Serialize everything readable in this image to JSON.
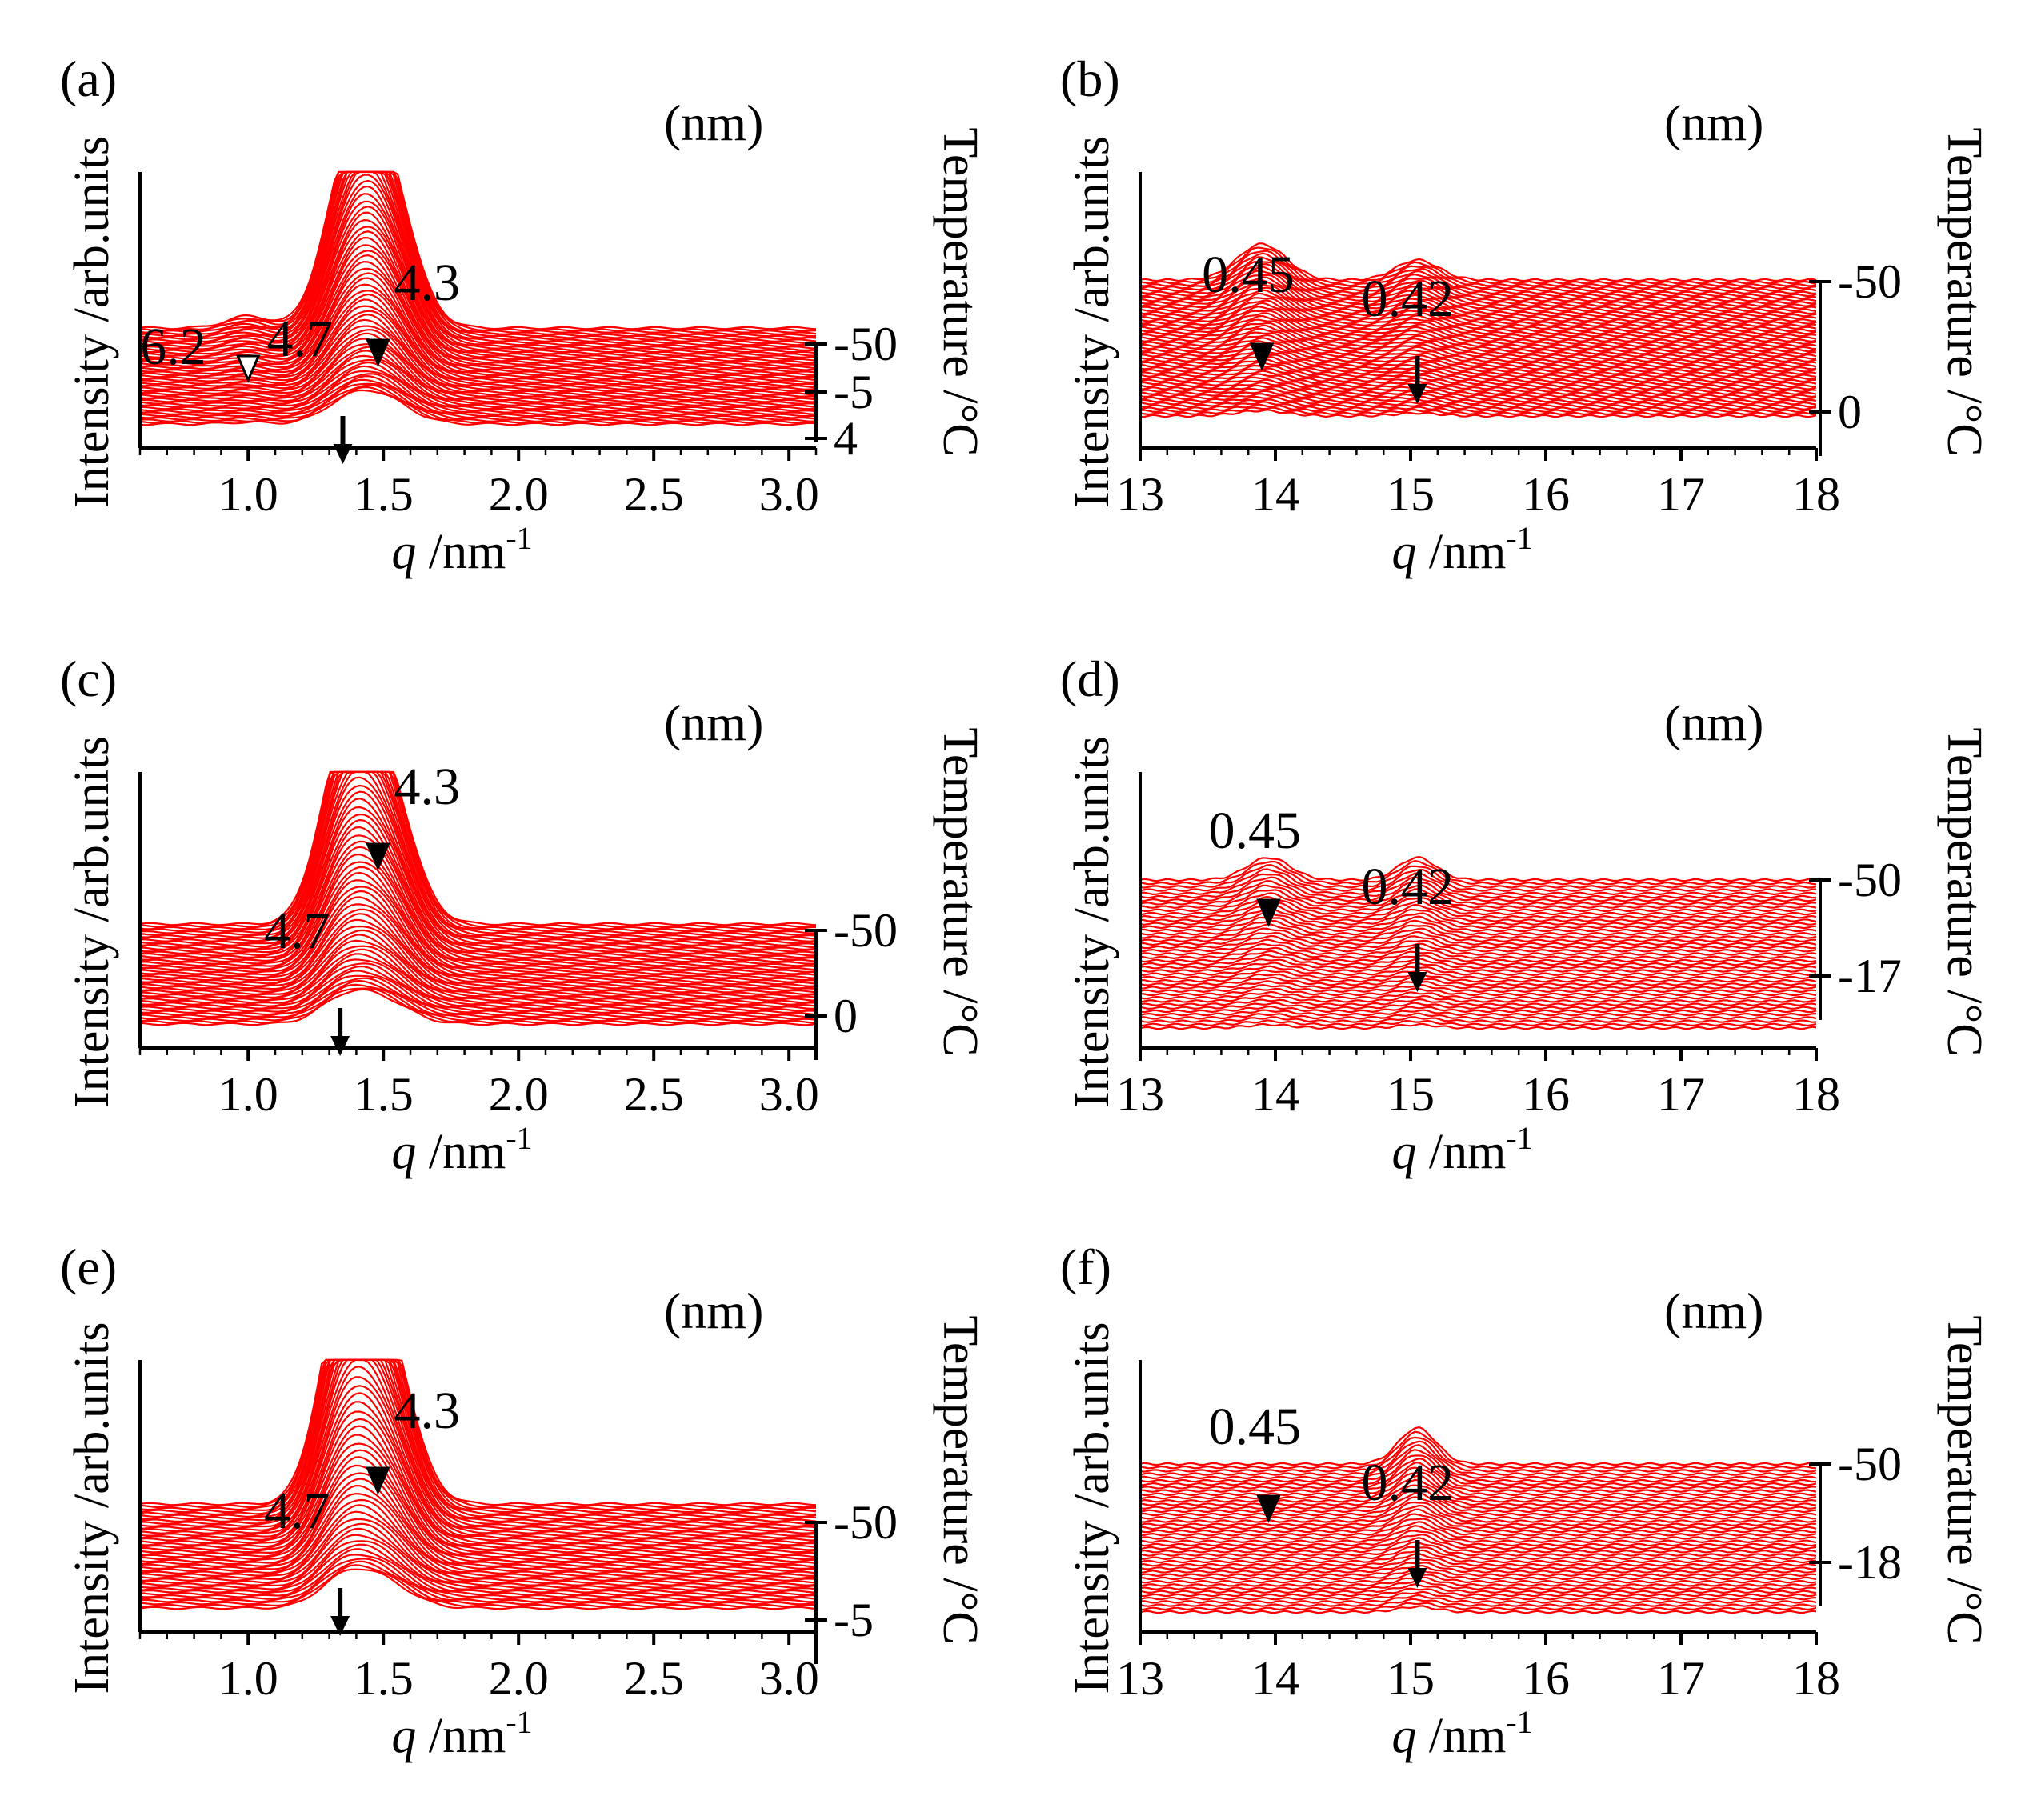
{
  "figure": {
    "unit_label": "(nm)",
    "y_axis_title": "Intensity /arb.units",
    "x_axis_title_var": "q",
    "x_axis_title_unit": " /nm",
    "x_axis_title_sup": "-1",
    "temp_axis_title": "Temperature /°C"
  },
  "colors": {
    "trace": "#ff0000",
    "background": "#ffffff",
    "axis": "#000000"
  },
  "chart_data": [
    {
      "id": "a",
      "label": "(a)",
      "type": "line",
      "title": "",
      "xlabel": "q /nm-1",
      "ylabel": "Intensity /arb.units",
      "xlim": [
        0.6,
        3.1
      ],
      "xticks": [
        "1.0",
        "1.5",
        "2.0",
        "2.5",
        "3.0"
      ],
      "xtick_values": [
        1.0,
        1.5,
        2.0,
        2.5,
        3.0
      ],
      "temperature_ticks": [
        "-50",
        "-5",
        "4"
      ],
      "temperature_range": [
        -50,
        4
      ],
      "n_traces": 55,
      "peaks_q": [
        1.0,
        1.35,
        1.48
      ],
      "peaks_width": [
        0.08,
        0.09,
        0.11
      ],
      "peak_labels": [
        {
          "text": "6.2",
          "q": 1.0,
          "marker": "open-triangle"
        },
        {
          "text": "4.7",
          "q": 1.35,
          "marker": "arrow"
        },
        {
          "text": "4.3",
          "q": 1.48,
          "marker": "filled-triangle"
        }
      ]
    },
    {
      "id": "b",
      "label": "(b)",
      "type": "line",
      "title": "",
      "xlabel": "q /nm-1",
      "ylabel": "Intensity /arb.units",
      "xlim": [
        13,
        18
      ],
      "xticks": [
        "13",
        "14",
        "15",
        "16",
        "17",
        "18"
      ],
      "xtick_values": [
        13,
        14,
        15,
        16,
        17,
        18
      ],
      "temperature_ticks": [
        "-50",
        "0"
      ],
      "temperature_range": [
        -50,
        0
      ],
      "n_traces": 55,
      "peaks_q": [
        13.9,
        15.05
      ],
      "peaks_width": [
        0.18,
        0.16
      ],
      "peak_labels": [
        {
          "text": "0.45",
          "q": 13.9,
          "marker": "filled-triangle"
        },
        {
          "text": "0.42",
          "q": 15.05,
          "marker": "arrow"
        }
      ]
    },
    {
      "id": "c",
      "label": "(c)",
      "type": "line",
      "title": "",
      "xlabel": "q /nm-1",
      "ylabel": "Intensity /arb.units",
      "xlim": [
        0.6,
        3.1
      ],
      "xticks": [
        "1.0",
        "1.5",
        "2.0",
        "2.5",
        "3.0"
      ],
      "xtick_values": [
        1.0,
        1.5,
        2.0,
        2.5,
        3.0
      ],
      "temperature_ticks": [
        "-50",
        "0"
      ],
      "temperature_range": [
        -50,
        0
      ],
      "n_traces": 50,
      "peaks_q": [
        1.34,
        1.48
      ],
      "peaks_width": [
        0.09,
        0.11
      ],
      "peak_labels": [
        {
          "text": "4.7",
          "q": 1.34,
          "marker": "arrow"
        },
        {
          "text": "4.3",
          "q": 1.48,
          "marker": "filled-triangle"
        }
      ]
    },
    {
      "id": "d",
      "label": "(d)",
      "type": "line",
      "title": "",
      "xlabel": "q /nm-1",
      "ylabel": "Intensity /arb.units",
      "xlim": [
        13,
        18
      ],
      "xticks": [
        "13",
        "14",
        "15",
        "16",
        "17",
        "18"
      ],
      "xtick_values": [
        13,
        14,
        15,
        16,
        17,
        18
      ],
      "temperature_ticks": [
        "-50",
        "-17"
      ],
      "temperature_range": [
        -50,
        -17
      ],
      "n_traces": 45,
      "peaks_q": [
        13.95,
        15.05
      ],
      "peaks_width": [
        0.16,
        0.14
      ],
      "peak_labels": [
        {
          "text": "0.45",
          "q": 13.95,
          "marker": "filled-triangle"
        },
        {
          "text": "0.42",
          "q": 15.05,
          "marker": "arrow"
        }
      ]
    },
    {
      "id": "e",
      "label": "(e)",
      "type": "line",
      "title": "",
      "xlabel": "q /nm-1",
      "ylabel": "Intensity /arb.units",
      "xlim": [
        0.6,
        3.1
      ],
      "xticks": [
        "1.0",
        "1.5",
        "2.0",
        "2.5",
        "3.0"
      ],
      "xtick_values": [
        1.0,
        1.5,
        2.0,
        2.5,
        3.0
      ],
      "temperature_ticks": [
        "-50",
        "-5"
      ],
      "temperature_range": [
        -50,
        -5
      ],
      "n_traces": 45,
      "peaks_q": [
        1.34,
        1.48
      ],
      "peaks_width": [
        0.09,
        0.11
      ],
      "peak_labels": [
        {
          "text": "4.7",
          "q": 1.34,
          "marker": "arrow"
        },
        {
          "text": "4.3",
          "q": 1.48,
          "marker": "filled-triangle"
        }
      ]
    },
    {
      "id": "f",
      "label": "(f)",
      "type": "line",
      "title": "",
      "xlabel": "q /nm-1",
      "ylabel": "Intensity /arb.units",
      "xlim": [
        13,
        18
      ],
      "xticks": [
        "13",
        "14",
        "15",
        "16",
        "17",
        "18"
      ],
      "xtick_values": [
        13,
        14,
        15,
        16,
        17,
        18
      ],
      "temperature_ticks": [
        "-50",
        "-18"
      ],
      "temperature_range": [
        -50,
        -18
      ],
      "n_traces": 45,
      "peaks_q": [
        13.95,
        15.05
      ],
      "peaks_width": [
        0.16,
        0.14
      ],
      "peak_labels": [
        {
          "text": "0.45",
          "q": 13.95,
          "marker": "filled-triangle"
        },
        {
          "text": "0.42",
          "q": 15.05,
          "marker": "arrow"
        }
      ]
    }
  ]
}
